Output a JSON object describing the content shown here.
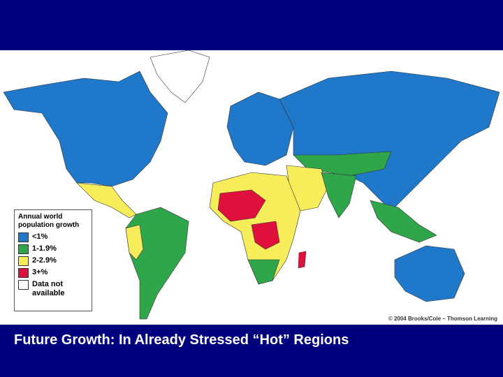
{
  "map": {
    "legend": {
      "title": "Annual world population growth",
      "items": [
        {
          "label": "<1%",
          "color": "#1f78c9"
        },
        {
          "label": "1-1.9%",
          "color": "#2fa64a"
        },
        {
          "label": "2-2.9%",
          "color": "#f7ec5a"
        },
        {
          "label": "3+%",
          "color": "#e0103c"
        },
        {
          "label": "Data not available",
          "color": "#ffffff"
        }
      ]
    },
    "credit": "© 2004 Brooks/Cole – Thomson Learning"
  },
  "caption": "Future Growth: In Already Stressed “Hot” Regions"
}
